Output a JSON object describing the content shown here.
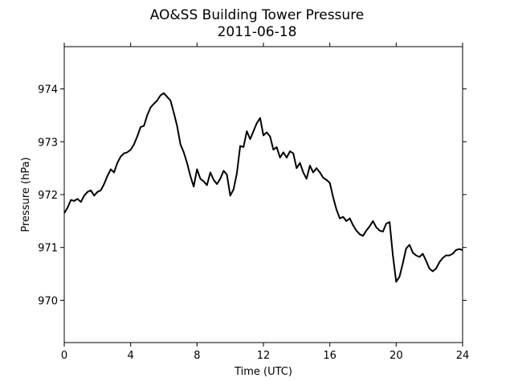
{
  "chart_data": {
    "type": "line",
    "title": "AO&SS Building Tower Pressure",
    "subtitle": "2011-06-18",
    "xlabel": "Time (UTC)",
    "ylabel": "Pressure (hPa)",
    "xlim": [
      0,
      24
    ],
    "ylim": [
      969.2,
      974.8
    ],
    "xticks": [
      0,
      4,
      8,
      12,
      16,
      20,
      24
    ],
    "xtick_labels": [
      "0",
      "4",
      "8",
      "12",
      "16",
      "20",
      "24"
    ],
    "yticks": [
      970,
      971,
      972,
      973,
      974
    ],
    "ytick_labels": [
      "970",
      "971",
      "972",
      "973",
      "974"
    ],
    "grid": false,
    "series": [
      {
        "color": "#000000",
        "x": [
          0.0,
          0.2,
          0.4,
          0.6,
          0.8,
          1.0,
          1.2,
          1.4,
          1.6,
          1.8,
          2.0,
          2.2,
          2.4,
          2.6,
          2.8,
          3.0,
          3.2,
          3.4,
          3.6,
          3.8,
          4.0,
          4.2,
          4.4,
          4.6,
          4.8,
          5.0,
          5.2,
          5.4,
          5.6,
          5.8,
          6.0,
          6.2,
          6.4,
          6.6,
          6.8,
          7.0,
          7.2,
          7.4,
          7.6,
          7.8,
          8.0,
          8.2,
          8.4,
          8.6,
          8.8,
          9.0,
          9.2,
          9.4,
          9.6,
          9.8,
          10.0,
          10.2,
          10.4,
          10.6,
          10.8,
          11.0,
          11.2,
          11.4,
          11.6,
          11.8,
          12.0,
          12.2,
          12.4,
          12.6,
          12.8,
          13.0,
          13.2,
          13.4,
          13.6,
          13.8,
          14.0,
          14.2,
          14.4,
          14.6,
          14.8,
          15.0,
          15.2,
          15.4,
          15.6,
          15.8,
          16.0,
          16.2,
          16.4,
          16.6,
          16.8,
          17.0,
          17.2,
          17.4,
          17.6,
          17.8,
          18.0,
          18.2,
          18.4,
          18.6,
          18.8,
          19.0,
          19.2,
          19.4,
          19.6,
          19.8,
          20.0,
          20.2,
          20.4,
          20.6,
          20.8,
          21.0,
          21.2,
          21.4,
          21.6,
          21.8,
          22.0,
          22.2,
          22.4,
          22.6,
          22.8,
          23.0,
          23.2,
          23.4,
          23.6,
          23.8,
          24.0
        ],
        "y": [
          971.65,
          971.75,
          971.9,
          971.88,
          971.92,
          971.86,
          971.98,
          972.05,
          972.08,
          971.98,
          972.05,
          972.08,
          972.2,
          972.35,
          972.48,
          972.42,
          972.6,
          972.72,
          972.78,
          972.8,
          972.85,
          972.95,
          973.1,
          973.28,
          973.3,
          973.5,
          973.65,
          973.72,
          973.78,
          973.88,
          973.92,
          973.85,
          973.78,
          973.55,
          973.3,
          972.95,
          972.8,
          972.6,
          972.35,
          972.15,
          972.48,
          972.3,
          972.25,
          972.18,
          972.42,
          972.28,
          972.2,
          972.3,
          972.45,
          972.38,
          971.98,
          972.1,
          972.4,
          972.92,
          972.9,
          973.2,
          973.05,
          973.2,
          973.35,
          973.45,
          973.12,
          973.18,
          973.1,
          972.85,
          972.9,
          972.7,
          972.8,
          972.7,
          972.82,
          972.78,
          972.5,
          972.6,
          972.42,
          972.3,
          972.55,
          972.42,
          972.5,
          972.42,
          972.32,
          972.28,
          972.22,
          971.95,
          971.72,
          971.55,
          971.58,
          971.5,
          971.55,
          971.42,
          971.32,
          971.25,
          971.22,
          971.32,
          971.4,
          971.5,
          971.38,
          971.32,
          971.3,
          971.45,
          971.48,
          970.85,
          970.35,
          970.45,
          970.7,
          970.98,
          971.05,
          970.9,
          970.85,
          970.82,
          970.88,
          970.75,
          970.6,
          970.55,
          970.6,
          970.72,
          970.8,
          970.85,
          970.85,
          970.88,
          970.95,
          970.97,
          970.95
        ]
      }
    ]
  }
}
